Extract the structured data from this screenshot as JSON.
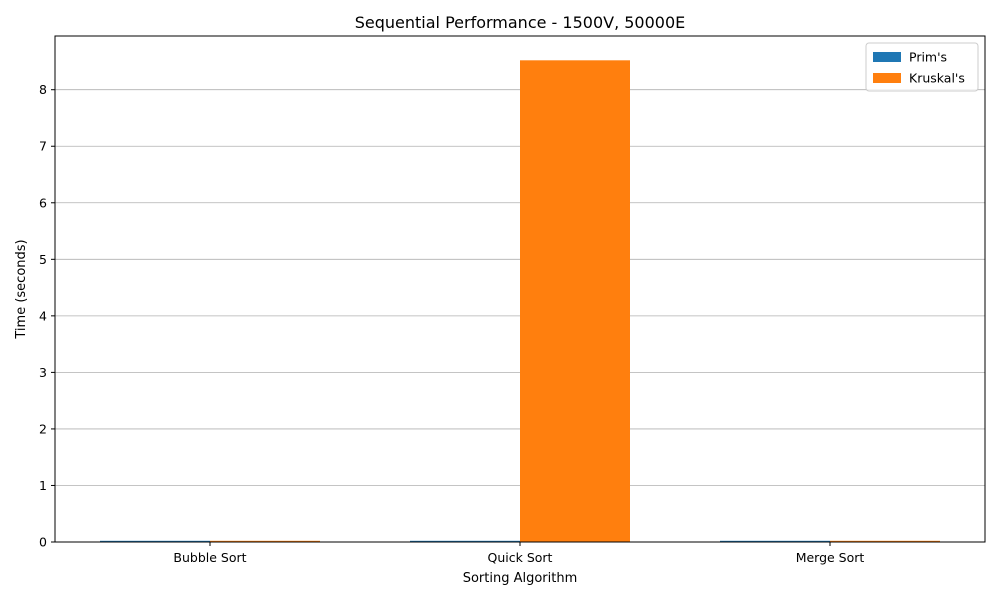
{
  "chart_data": {
    "type": "bar",
    "title": "Sequential Performance - 1500V, 50000E",
    "xlabel": "Sorting Algorithm",
    "ylabel": "Time (seconds)",
    "categories": [
      "Bubble Sort",
      "Quick Sort",
      "Merge Sort"
    ],
    "series": [
      {
        "name": "Prim's",
        "values": [
          0.01,
          0.01,
          0.01
        ],
        "color": "#1f77b4"
      },
      {
        "name": "Kruskal's",
        "values": [
          0.01,
          8.52,
          0.01
        ],
        "color": "#ff7f0e"
      }
    ],
    "ylim": [
      0,
      8.95
    ],
    "yticks": [
      "0",
      "1",
      "2",
      "3",
      "4",
      "5",
      "6",
      "7",
      "8"
    ],
    "grid": "y",
    "legend_position": "top-right"
  }
}
